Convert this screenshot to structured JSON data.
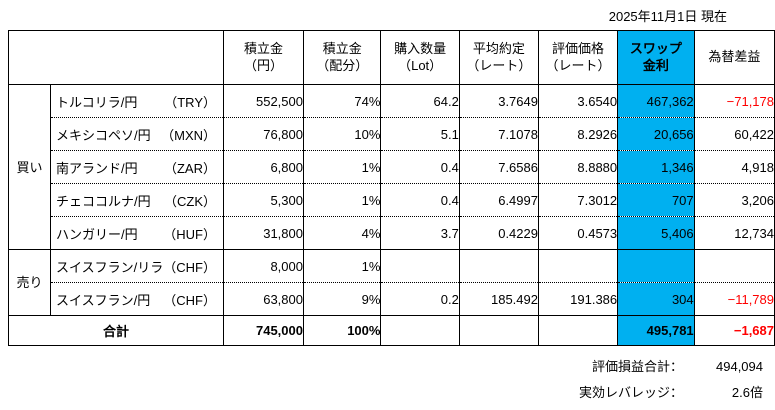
{
  "as_of": "2025年11月1日 現在",
  "colors": {
    "swap_highlight": "#00B0F0",
    "negative_red": "#FF0000",
    "border_black": "#000000"
  },
  "chart_data": {
    "type": "table",
    "title": "2025年11月1日 現在",
    "columns": [
      {
        "key": "tsumitate-yen",
        "lines": [
          "積立金",
          "（円）"
        ]
      },
      {
        "key": "tsumitate-haibun",
        "lines": [
          "積立金",
          "（配分）"
        ],
        "thick_left": true
      },
      {
        "key": "lot",
        "lines": [
          "購入数量",
          "（Lot）"
        ],
        "thick_left": true
      },
      {
        "key": "avg-rate",
        "lines": [
          "平均約定",
          "（レート）"
        ]
      },
      {
        "key": "eval-rate",
        "lines": [
          "評価価格",
          "（レート）"
        ]
      },
      {
        "key": "swap",
        "lines": [
          "スワップ",
          "金利"
        ],
        "highlight": true
      },
      {
        "key": "fx",
        "lines": [
          "為替差益"
        ]
      }
    ],
    "rows": [
      {
        "section": "買い",
        "section_rowspan": 5,
        "name": "トルコリラ/円",
        "code": "（TRY）",
        "amount": "552,500",
        "alloc": "74%",
        "lot": "64.2",
        "avg_rate": "3.7649",
        "eval_rate": "3.6540",
        "swap": "467,362",
        "fx": "−71,178",
        "fx_neg": true,
        "dotted": false
      },
      {
        "name": "メキシコペソ/円",
        "code": "（MXN）",
        "amount": "76,800",
        "alloc": "10%",
        "lot": "5.1",
        "avg_rate": "7.1078",
        "eval_rate": "8.2926",
        "swap": "20,656",
        "fx": "60,422",
        "fx_neg": false,
        "dotted": true
      },
      {
        "name": "南アランド/円",
        "code": "（ZAR）",
        "amount": "6,800",
        "alloc": "1%",
        "lot": "0.4",
        "avg_rate": "7.6586",
        "eval_rate": "8.8880",
        "swap": "1,346",
        "fx": "4,918",
        "fx_neg": false,
        "dotted": true
      },
      {
        "name": "チェココルナ/円",
        "code": "（CZK）",
        "amount": "5,300",
        "alloc": "1%",
        "lot": "0.4",
        "avg_rate": "6.4997",
        "eval_rate": "7.3012",
        "swap": "707",
        "fx": "3,206",
        "fx_neg": false,
        "dotted": true
      },
      {
        "name": "ハンガリー/円",
        "code": "（HUF）",
        "amount": "31,800",
        "alloc": "4%",
        "lot": "3.7",
        "avg_rate": "0.4229",
        "eval_rate": "0.4573",
        "swap": "5,406",
        "fx": "12,734",
        "fx_neg": false,
        "dotted": true
      },
      {
        "section": "売り",
        "section_rowspan": 2,
        "name": "スイスフラン/リラ",
        "code": "（CHF）",
        "amount": "8,000",
        "alloc": "1%",
        "lot": "",
        "avg_rate": "",
        "eval_rate": "",
        "swap": "",
        "fx": "",
        "fx_neg": false,
        "dotted": false
      },
      {
        "name": "スイスフラン/円",
        "code": "（CHF）",
        "amount": "63,800",
        "alloc": "9%",
        "lot": "0.2",
        "avg_rate": "185.492",
        "eval_rate": "191.386",
        "swap": "304",
        "fx": "−11,789",
        "fx_neg": true,
        "dotted": true
      }
    ],
    "total": {
      "label": "合計",
      "amount": "745,000",
      "alloc": "100%",
      "lot": "",
      "avg_rate": "",
      "eval_rate": "",
      "swap": "495,781",
      "fx": "−1,687",
      "fx_neg": true
    }
  },
  "summary": [
    {
      "label": "評価損益合計：",
      "value": "494,094"
    },
    {
      "label": "実効レバレッジ：",
      "value": "2.6倍"
    }
  ]
}
